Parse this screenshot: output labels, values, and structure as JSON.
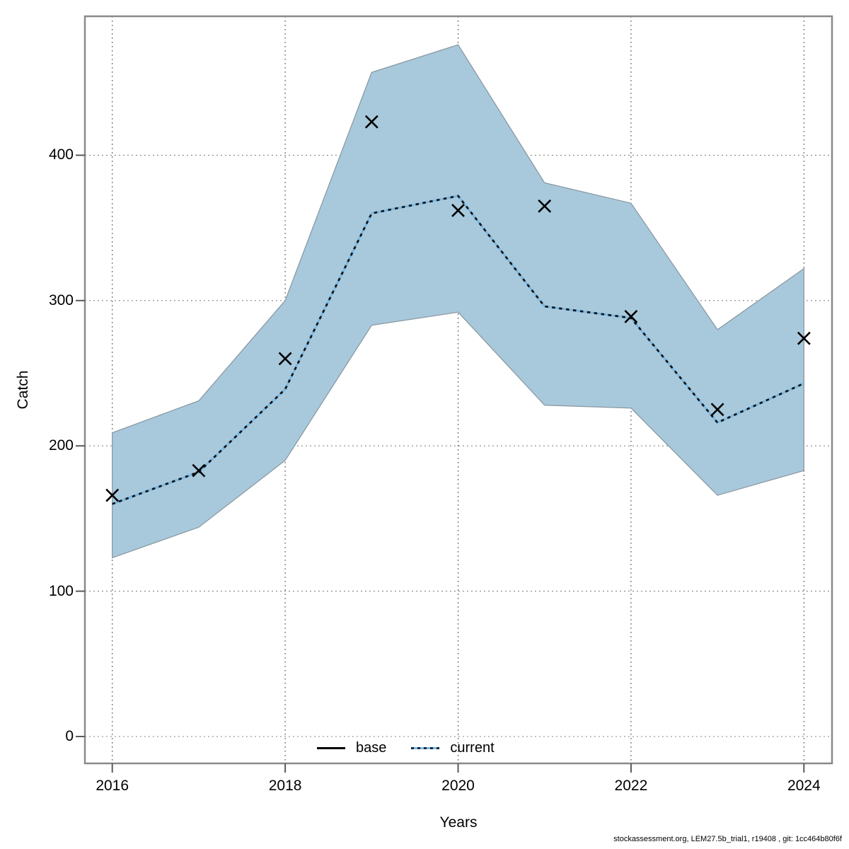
{
  "chart_data": {
    "type": "line",
    "title": "",
    "xlabel": "Years",
    "ylabel": "Catch",
    "x": [
      2016,
      2017,
      2018,
      2019,
      2020,
      2021,
      2022,
      2023,
      2024
    ],
    "series": [
      {
        "name": "current",
        "style": "dotted",
        "values": [
          160,
          182,
          239,
          360,
          372,
          296,
          288,
          216,
          243
        ]
      }
    ],
    "observations": {
      "marker": "x",
      "values": [
        166,
        183,
        260,
        423,
        362,
        365,
        289,
        225,
        274
      ]
    },
    "confidence_band": {
      "upper": [
        209,
        231,
        300,
        457,
        476,
        381,
        367,
        280,
        322
      ],
      "lower": [
        123,
        144,
        190,
        283,
        292,
        228,
        226,
        166,
        183
      ]
    },
    "x_ticks": [
      2016,
      2018,
      2020,
      2022,
      2024
    ],
    "y_ticks": [
      0,
      100,
      200,
      300,
      400
    ],
    "xlim": [
      2015.68,
      2024.32
    ],
    "ylim": [
      -18,
      496
    ],
    "grid": "dotted",
    "legend_position": "bottom-center",
    "legend": [
      "base",
      "current"
    ]
  },
  "legend": {
    "items": [
      {
        "label": "base",
        "line": "solid-black"
      },
      {
        "label": "current",
        "line": "dotted-blue"
      }
    ]
  },
  "footer": {
    "note": "stockassessment.org, LEM27.5b_trial1, r19408 , git: 1cc464b80f6f"
  },
  "colors": {
    "band_fill": "#a8c9dc",
    "band_edge": "#8b99a4",
    "current_line_base": "#7cb9e2",
    "current_line_dash": "#10161c",
    "base_line": "#000000",
    "marker": "#000000",
    "h_grid": "#7a7a7a",
    "v_grid": "#4a4a4a",
    "box": "#8a8a8a",
    "tick": "#5a5a5a",
    "text": "#000000"
  }
}
